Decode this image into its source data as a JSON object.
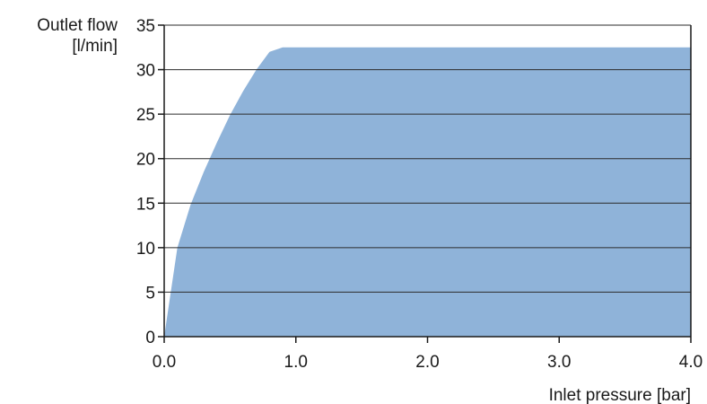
{
  "chart_data": {
    "type": "area",
    "ylabel_lines": [
      "Outlet flow",
      "[l/min]"
    ],
    "xlabel": "Inlet pressure [bar]",
    "xlim": [
      0,
      4
    ],
    "ylim": [
      0,
      35
    ],
    "x_ticks": [
      0,
      1,
      2,
      3,
      4
    ],
    "x_tick_labels": [
      "0.0",
      "1.0",
      "2.0",
      "3.0",
      "4.0"
    ],
    "y_ticks": [
      0,
      5,
      10,
      15,
      20,
      25,
      30,
      35
    ],
    "y_tick_labels": [
      "0",
      "5",
      "10",
      "15",
      "20",
      "25",
      "30",
      "35"
    ],
    "grid": "horizontal",
    "legend": "none",
    "series": [
      {
        "x": [
          0.0,
          0.1,
          0.2,
          0.3,
          0.4,
          0.5,
          0.6,
          0.7,
          0.8,
          0.9,
          1.0,
          4.0
        ],
        "values": [
          0,
          10,
          14.8,
          18.5,
          21.8,
          24.9,
          27.6,
          30.0,
          32.0,
          32.5,
          32.5,
          32.5
        ]
      }
    ],
    "colors": {
      "fill": "#8fb3d9",
      "grid": "#2b2b2b",
      "axis": "#1a1a1a"
    }
  }
}
